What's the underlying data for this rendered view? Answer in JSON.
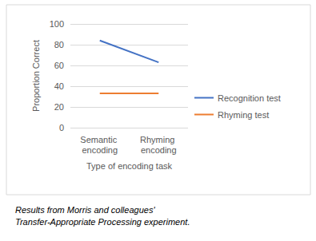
{
  "chart_data": {
    "type": "line",
    "categories": [
      "Semantic encoding",
      "Rhyming encoding"
    ],
    "series": [
      {
        "name": "Recognition test",
        "color": "#4472c4",
        "values": [
          84,
          63
        ]
      },
      {
        "name": "Rhyming test",
        "color": "#ed7d31",
        "values": [
          33,
          33
        ]
      }
    ],
    "y_label": "Proportion Correct",
    "x_label": "Type of encoding task",
    "ylim": [
      0,
      100
    ],
    "yticks": [
      0,
      20,
      40,
      60,
      80,
      100
    ],
    "grid": true,
    "legend": "right",
    "caption": "Results from Morris and colleagues' Transfer-Appropriate Processing experiment."
  }
}
